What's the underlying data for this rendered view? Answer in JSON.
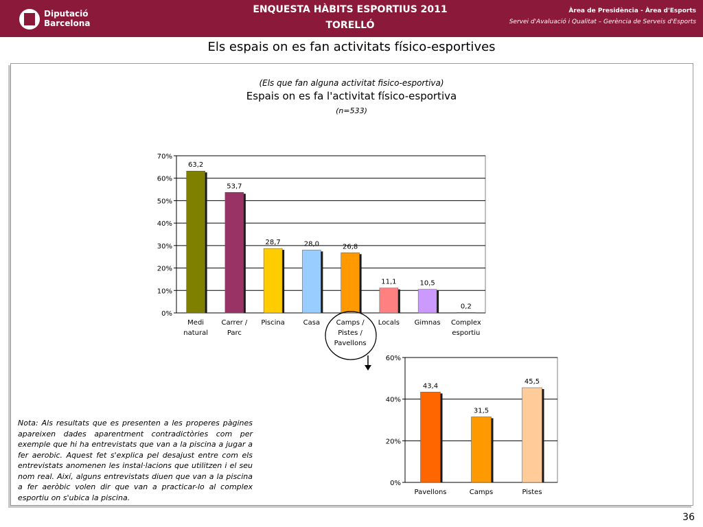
{
  "header": {
    "logo_line1": "Diputació",
    "logo_line2": "Barcelona",
    "title_line1": "ENQUESTA HÀBITS ESPORTIUS 2011",
    "title_line2": "TORELLÓ",
    "right_line1": "Àrea de Presidència   -   Àrea d'Esports",
    "right_line2": "Servei d'Avaluació i Qualitat – Gerència de Serveis d'Esports"
  },
  "page_title": "Els espais on es fan activitats físico-esportives",
  "chart_header": {
    "qualifier": "(Els que fan alguna activitat fisico-esportiva)",
    "title": "Espais on es fa l'activitat físico-esportiva",
    "n": "(n=533)"
  },
  "note": "Nota: Als resultats que es presenten a les properes pàgines apareixen dades aparentment contradictòries  com per exemple que hi ha entrevistats que van a la piscina a jugar a fer aerobic. Aquest fet s'explica pel desajust entre com els entrevistats anomenen les instal·lacions que utilitzen i el seu nom real. Així, alguns entrevistats diuen que van a la piscina a fer aeròbic volen dir que van a practicar-lo al complex esportiu on s'ubica la piscina.",
  "page_number": "36",
  "colors": {
    "header_bg": "#8b1a3a",
    "main_bars": [
      "#808000",
      "#993366",
      "#ffcc00",
      "#99ccff",
      "#ff9900",
      "#ff8080",
      "#cc99ff",
      "#808000"
    ],
    "sub_bars": [
      "#ff6600",
      "#ff9900",
      "#ffcc99"
    ]
  },
  "chart_data": [
    {
      "type": "bar",
      "categories": [
        [
          "Medi",
          "natural"
        ],
        [
          "Carrer /",
          "Parc"
        ],
        [
          "Piscina"
        ],
        [
          "Casa"
        ],
        [
          "Camps /",
          "Pistes /",
          "Pavellons"
        ],
        [
          "Locals"
        ],
        [
          "Gimnas"
        ],
        [
          "Complex",
          "esportiu"
        ]
      ],
      "values": [
        63.2,
        53.7,
        28.7,
        28.0,
        26.8,
        11.1,
        10.5,
        0.2
      ],
      "value_labels": [
        "63,2",
        "53,7",
        "28,7",
        "28,0",
        "26,8",
        "11,1",
        "10,5",
        "0,2"
      ],
      "yticks": [
        "0%",
        "10%",
        "20%",
        "30%",
        "40%",
        "50%",
        "60%",
        "70%"
      ],
      "ylim": [
        0,
        70
      ],
      "grid": true,
      "highlighted_category": "Camps / Pistes / Pavellons"
    },
    {
      "type": "bar",
      "categories": [
        [
          "Pavellons"
        ],
        [
          "Camps"
        ],
        [
          "Pistes"
        ]
      ],
      "values": [
        43.4,
        31.5,
        45.5
      ],
      "value_labels": [
        "43,4",
        "31,5",
        "45,5"
      ],
      "yticks": [
        "0%",
        "20%",
        "40%",
        "60%"
      ],
      "ylim": [
        0,
        60
      ],
      "grid": true
    }
  ]
}
